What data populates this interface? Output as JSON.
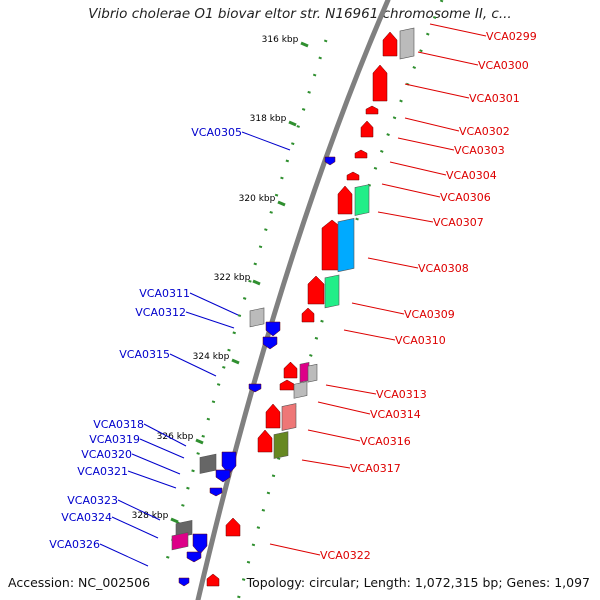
{
  "title": "Vibrio cholerae O1 biovar eltor str. N16961 chromosome II, c...",
  "footer": {
    "accession": "Accession: NC_002506",
    "summary": "Topology: circular; Length: 1,072,315 bp; Genes: 1,097"
  },
  "colors": {
    "backbone": "#808080",
    "tick": "#2f8f2f",
    "scale_label": "#000000",
    "forward_label": "#dd0000",
    "reverse_label": "#0000cc",
    "gene_red": "#ff0000",
    "gene_blue": "#0000ff",
    "gene_gray": "#bbbbbb",
    "gene_green": "#22ee88",
    "gene_cyan": "#00aaff",
    "gene_pink": "#ee7777",
    "gene_magenta": "#dd0088",
    "gene_olive": "#668822",
    "gene_darkgray": "#666666"
  },
  "scale_marks": [
    "316 kbp",
    "318 kbp",
    "320 kbp",
    "322 kbp",
    "324 kbp",
    "326 kbp",
    "328 kbp"
  ],
  "forward_genes": [
    "VCA0299",
    "VCA0300",
    "VCA0301",
    "VCA0302",
    "VCA0303",
    "VCA0304",
    "VCA0306",
    "VCA0307",
    "VCA0308",
    "VCA0309",
    "VCA0310",
    "VCA0313",
    "VCA0314",
    "VCA0316",
    "VCA0317",
    "VCA0322"
  ],
  "reverse_genes": [
    "VCA0305",
    "VCA0311",
    "VCA0312",
    "VCA0315",
    "VCA0318",
    "VCA0319",
    "VCA0320",
    "VCA0321",
    "VCA0323",
    "VCA0324",
    "VCA0326"
  ]
}
